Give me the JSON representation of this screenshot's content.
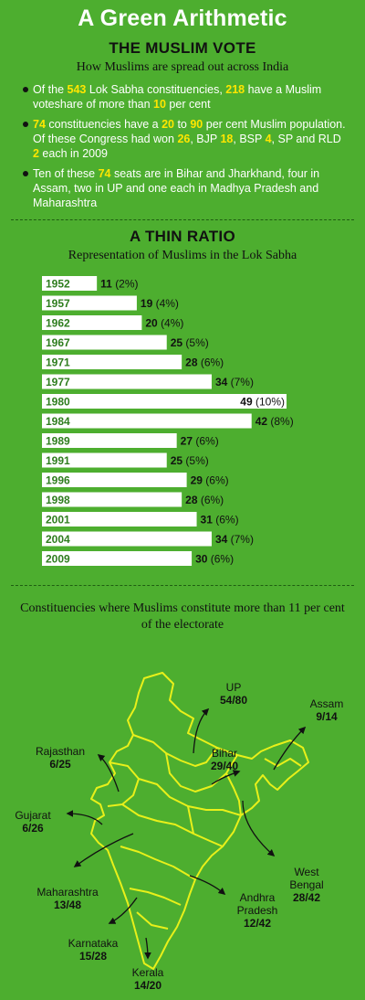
{
  "title": "A Green Arithmetic",
  "vote": {
    "heading": "THE MUSLIM VOTE",
    "subheading": "How Muslims are spread out across India",
    "b1": {
      "t1": "Of the ",
      "n1": "543",
      "t2": " Lok Sabha constituencies, ",
      "n2": "218",
      "t3": " have a Muslim voteshare of more than ",
      "n3": "10",
      "t4": " per cent"
    },
    "b2": {
      "n1": "74",
      "t1": " constituencies have a ",
      "n2": "20",
      "t2": " to ",
      "n3": "90",
      "t3": " per cent Muslim population. Of these Congress had won ",
      "n4": "26",
      "t4": ", BJP ",
      "n5": "18",
      "t5": ", BSP ",
      "n6": "4",
      "t6": ", SP and RLD ",
      "n7": "2",
      "t7": " each in 2009"
    },
    "b3": {
      "t1": "Ten of these ",
      "n1": "74",
      "t2": " seats are in Bihar and Jharkhand, four in Assam, two in UP and one each in Madhya Pradesh and Maharashtra"
    }
  },
  "ratio": {
    "heading": "A THIN RATIO",
    "subheading": "Representation of Muslims in the Lok Sabha"
  },
  "chart_data": {
    "type": "bar",
    "orientation": "horizontal",
    "categories": [
      "1952",
      "1957",
      "1962",
      "1967",
      "1971",
      "1977",
      "1980",
      "1984",
      "1989",
      "1991",
      "1996",
      "1998",
      "2001",
      "2004",
      "2009"
    ],
    "values": [
      11,
      19,
      20,
      25,
      28,
      34,
      49,
      42,
      27,
      25,
      29,
      28,
      31,
      34,
      30
    ],
    "value_labels": [
      "11",
      "19",
      "20",
      "25",
      "28",
      "34",
      "49",
      "42",
      "27",
      "25",
      "29",
      "28",
      "31",
      "34",
      "30"
    ],
    "pct_labels": [
      "(2%)",
      "(4%)",
      "(4%)",
      "(5%)",
      "(6%)",
      "(7%)",
      "(10%)",
      "(8%)",
      "(6%)",
      "(5%)",
      "(6%)",
      "(6%)",
      "(6%)",
      "(7%)",
      "(6%)"
    ],
    "xlim": [
      0,
      49
    ],
    "grid": false,
    "bar_color": "#ffffff",
    "year_color": "#2e7d1e"
  },
  "map": {
    "title": "Constituencies where Muslims constitute more than 11 per cent of the electorate",
    "outline_color": "#e8f01a",
    "labels": [
      {
        "name": "UP",
        "value": "54/80"
      },
      {
        "name": "Assam",
        "value": "9/14"
      },
      {
        "name": "Rajasthan",
        "value": "6/25"
      },
      {
        "name": "Bihar",
        "value": "29/40"
      },
      {
        "name": "Gujarat",
        "value": "6/26"
      },
      {
        "name": "West Bengal",
        "value": "28/42"
      },
      {
        "name": "Maharashtra",
        "value": "13/48"
      },
      {
        "name": "Andhra Pradesh",
        "value": "12/42"
      },
      {
        "name": "Karnataka",
        "value": "15/28"
      },
      {
        "name": "Kerala",
        "value": "14/20"
      }
    ]
  }
}
